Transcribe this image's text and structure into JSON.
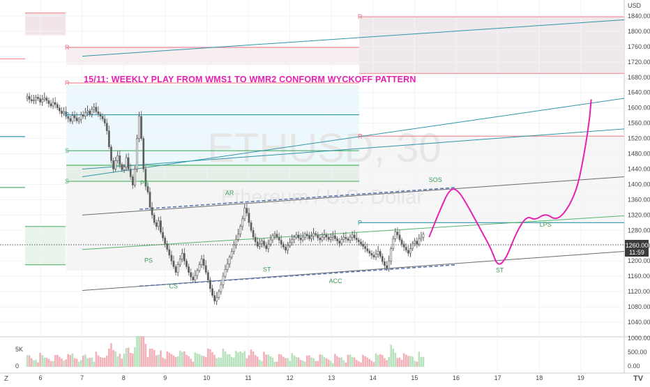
{
  "chart_data": {
    "type": "candlestick",
    "symbol": "ETHUSD",
    "interval": "30",
    "watermark_symbol": "ETHUSD, 30",
    "watermark_name": "Ethereum / U.S. Dollar",
    "annotation_title": "15/11: WEEKLY PLAY FROM WMS1 TO WMR2 CONFORM WYCKOFF PATTERN",
    "currency": "USD",
    "price_ticks": [
      1840,
      1800,
      1760,
      1720,
      1680,
      1640,
      1600,
      1560,
      1520,
      1480,
      1440,
      1400,
      1360,
      1320,
      1280,
      1240,
      1200,
      1160,
      1120,
      1080,
      1040
    ],
    "ylim": [
      1020,
      1860
    ],
    "volume_ticks_labels": [
      "1000.00",
      "5K",
      "0.00"
    ],
    "volume_axis_left": [
      "5K",
      "0"
    ],
    "volume_axis_right": [
      "1000.00",
      "500.00",
      "0.00"
    ],
    "x_ticks": [
      "6",
      "7",
      "8",
      "9",
      "10",
      "11",
      "12",
      "13",
      "14",
      "15",
      "16",
      "17",
      "18",
      "19"
    ],
    "current_price": "1260.00",
    "countdown": "11:59",
    "wyckoff_labels": [
      {
        "text": "PS",
        "day": 8.5,
        "price": 1398
      },
      {
        "text": "PS",
        "day": 8.6,
        "price": 1196
      },
      {
        "text": "AR",
        "day": 10.55,
        "price": 1372
      },
      {
        "text": "CS",
        "day": 9.2,
        "price": 1128
      },
      {
        "text": "ST",
        "day": 11.45,
        "price": 1172
      },
      {
        "text": "ACC",
        "day": 13.1,
        "price": 1142
      },
      {
        "text": "SOS",
        "day": 15.5,
        "price": 1406
      },
      {
        "text": "LPS",
        "day": 18.15,
        "price": 1290
      },
      {
        "text": "ST",
        "day": 17.05,
        "price": 1170
      }
    ],
    "level_markers": [
      "R",
      "R",
      "R",
      "R",
      "P",
      "S",
      "S",
      "P"
    ],
    "ohlc": [
      1625,
      1630,
      1622,
      1618,
      1620,
      1628,
      1624,
      1615,
      1622,
      1626,
      1619,
      1611,
      1605,
      1614,
      1609,
      1600,
      1592,
      1585,
      1590,
      1578,
      1572,
      1565,
      1580,
      1574,
      1566,
      1570,
      1582,
      1578,
      1588,
      1592,
      1583,
      1596,
      1602,
      1590,
      1584,
      1578,
      1571,
      1560,
      1540,
      1498,
      1462,
      1440,
      1462,
      1475,
      1452,
      1438,
      1445,
      1470,
      1440,
      1420,
      1398,
      1440,
      1520,
      1578,
      1520,
      1440,
      1395,
      1380,
      1340,
      1320,
      1300,
      1290,
      1305,
      1275,
      1260,
      1245,
      1230,
      1215,
      1200,
      1185,
      1170,
      1190,
      1205,
      1220,
      1200,
      1185,
      1170,
      1158,
      1150,
      1162,
      1175,
      1190,
      1205,
      1188,
      1170,
      1150,
      1128,
      1110,
      1095,
      1105,
      1120,
      1138,
      1160,
      1178,
      1192,
      1210,
      1225,
      1242,
      1256,
      1270,
      1290,
      1310,
      1338,
      1325,
      1300,
      1280,
      1262,
      1250,
      1238,
      1245,
      1252,
      1240,
      1232,
      1244,
      1255,
      1266,
      1270,
      1262,
      1254,
      1244,
      1236,
      1228,
      1240,
      1248,
      1256,
      1262,
      1268,
      1260,
      1255,
      1262,
      1270,
      1266,
      1258,
      1264,
      1272,
      1268,
      1260,
      1255,
      1262,
      1268,
      1262,
      1256,
      1262,
      1266,
      1258,
      1252,
      1246,
      1256,
      1262,
      1258,
      1254,
      1262,
      1268,
      1260,
      1255,
      1250,
      1244,
      1238,
      1232,
      1226,
      1220,
      1215,
      1210,
      1218,
      1225,
      1212,
      1198,
      1188,
      1180,
      1200,
      1232,
      1258,
      1276,
      1268,
      1255,
      1244,
      1236,
      1228,
      1220,
      1232,
      1246,
      1252,
      1244,
      1258,
      1262,
      1270
    ],
    "projection": [
      [
        15.35,
        1262
      ],
      [
        15.6,
        1330
      ],
      [
        15.85,
        1390
      ],
      [
        16.05,
        1385
      ],
      [
        16.3,
        1340
      ],
      [
        16.6,
        1280
      ],
      [
        16.85,
        1230
      ],
      [
        17.0,
        1185
      ],
      [
        17.2,
        1205
      ],
      [
        17.45,
        1275
      ],
      [
        17.7,
        1318
      ],
      [
        17.9,
        1306
      ],
      [
        18.15,
        1325
      ],
      [
        18.4,
        1306
      ],
      [
        18.65,
        1330
      ],
      [
        18.9,
        1385
      ],
      [
        19.05,
        1460
      ],
      [
        19.2,
        1560
      ],
      [
        19.25,
        1622
      ]
    ]
  }
}
